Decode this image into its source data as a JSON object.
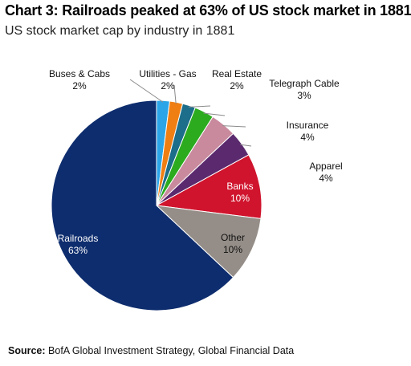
{
  "title": "Chart 3: Railroads peaked at 63% of US stock market in 1881",
  "subtitle": "US stock market cap by industry in 1881",
  "source": {
    "label": "Source:",
    "text": "BofA Global Investment Strategy, Global Financial Data"
  },
  "chart_data": {
    "type": "pie",
    "title": "Chart 3: Railroads peaked at 63% of US stock market in 1881",
    "subtitle": "US stock market cap by industry in 1881",
    "start_angle_deg": 0,
    "direction": "clockwise",
    "slices": [
      {
        "name": "Buses & Cabs",
        "value": 2,
        "value_label": "2%",
        "color": "#2ba5e8",
        "label_placement": "outside"
      },
      {
        "name": "Utilities  - Gas",
        "value": 2,
        "value_label": "2%",
        "color": "#f07f13",
        "label_placement": "outside"
      },
      {
        "name": "Real Estate",
        "value": 2,
        "value_label": "2%",
        "color": "#1c6e8a",
        "label_placement": "outside"
      },
      {
        "name": "Telegraph Cable",
        "value": 3,
        "value_label": "3%",
        "color": "#2cab1f",
        "label_placement": "outside"
      },
      {
        "name": "Insurance",
        "value": 4,
        "value_label": "4%",
        "color": "#c98a9e",
        "label_placement": "outside"
      },
      {
        "name": "Apparel",
        "value": 4,
        "value_label": "4%",
        "color": "#5b2a6e",
        "label_placement": "outside"
      },
      {
        "name": "Banks",
        "value": 10,
        "value_label": "10%",
        "color": "#d0142d",
        "label_placement": "inside"
      },
      {
        "name": "Other",
        "value": 10,
        "value_label": "10%",
        "color": "#958e88",
        "label_placement": "inside"
      },
      {
        "name": "Railroads",
        "value": 63,
        "value_label": "63%",
        "color": "#0e2d6e",
        "label_placement": "inside"
      }
    ]
  }
}
